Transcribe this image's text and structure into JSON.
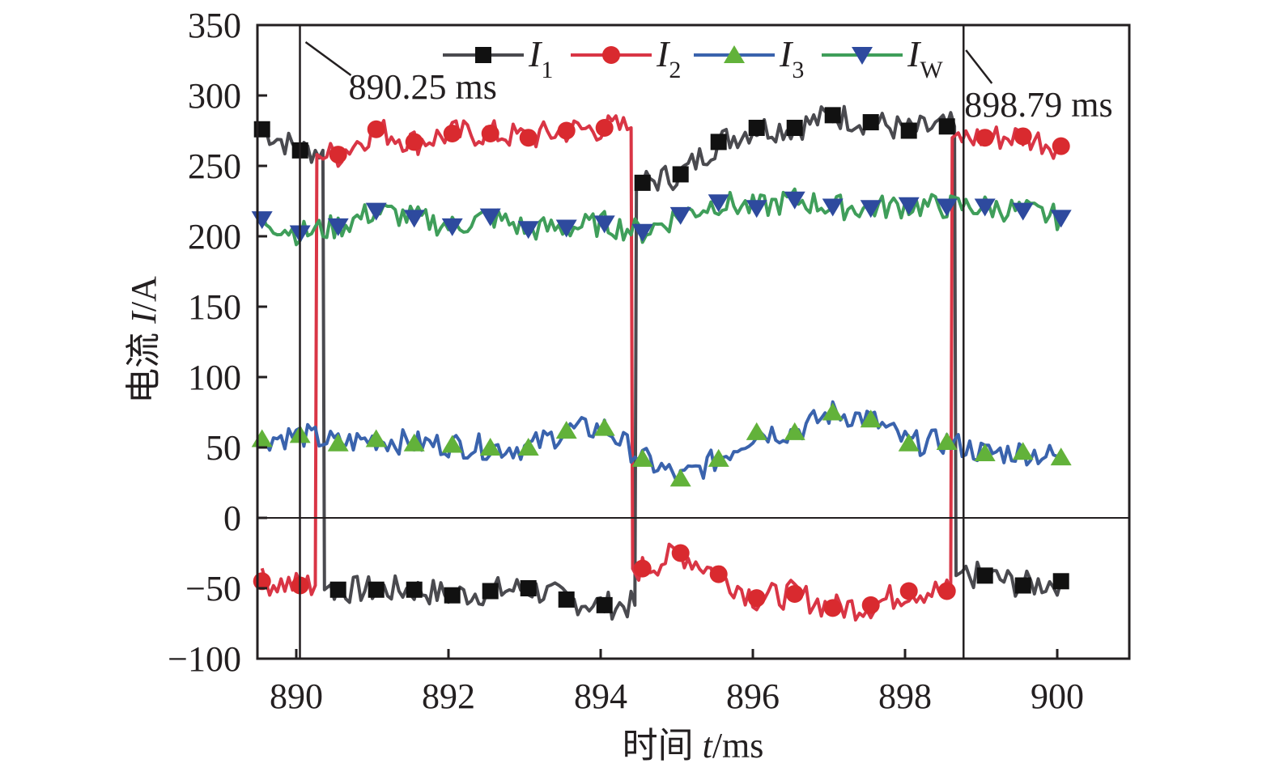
{
  "chart_data": {
    "type": "line",
    "title": "",
    "xlabel": "时间 t/ms",
    "ylabel": "电流 I/A",
    "xlabel_parts": {
      "prefix": "时间 ",
      "var": "t",
      "unit": "/ms"
    },
    "ylabel_parts": {
      "prefix": "电流 ",
      "var": "I",
      "unit": "/A"
    },
    "xlim": [
      889.5,
      901.0
    ],
    "ylim": [
      -100,
      350
    ],
    "xticks": [
      890,
      892,
      894,
      896,
      898,
      900
    ],
    "yticks": [
      -100,
      -50,
      0,
      50,
      100,
      150,
      200,
      250,
      300,
      350
    ],
    "ytick_labels": [
      "−100",
      "−50",
      "0",
      "50",
      "100",
      "150",
      "200",
      "250",
      "300",
      "350"
    ],
    "grid": false,
    "legend_placement": "top-center",
    "zero_line": true,
    "annotations": [
      {
        "x": 890.25,
        "label": "890.25 ms"
      },
      {
        "x": 898.79,
        "label": "898.79 ms"
      }
    ],
    "x": [
      889.55,
      890.05,
      890.55,
      891.05,
      891.55,
      892.05,
      892.55,
      893.05,
      893.55,
      894.05,
      894.55,
      895.05,
      895.55,
      896.05,
      896.55,
      897.05,
      897.55,
      898.05,
      898.55,
      899.05,
      899.55,
      900.05
    ],
    "series": [
      {
        "name": "I1",
        "label_main": "I",
        "label_sub": "1",
        "color": "#4a4a4f",
        "marker": "square",
        "marker_color": "#111111",
        "values": [
          276,
          261,
          -51,
          -51,
          -51,
          -55,
          -52,
          -50,
          -58,
          -62,
          238,
          244,
          267,
          277,
          277,
          286,
          281,
          275,
          278,
          -41,
          -48,
          -45
        ],
        "switch_points": [
          [
            890.35,
            261,
            -30
          ],
          [
            894.45,
            -57,
            230
          ],
          [
            898.65,
            270,
            -30
          ]
        ]
      },
      {
        "name": "I2",
        "label_main": "I",
        "label_sub": "2",
        "color": "#d93545",
        "marker": "circle",
        "marker_color": "#d92a2f",
        "values": [
          -45,
          -48,
          258,
          276,
          267,
          273,
          273,
          270,
          275,
          277,
          -36,
          -25,
          -40,
          -57,
          -54,
          -64,
          -62,
          -52,
          -52,
          270,
          271,
          264
        ],
        "switch_points": [
          [
            890.25,
            -48,
            250
          ],
          [
            894.4,
            275,
            -30
          ],
          [
            898.6,
            -50,
            245
          ]
        ]
      },
      {
        "name": "I3",
        "label_main": "I",
        "label_sub": "3",
        "color": "#3a63ad",
        "marker": "triangle-up",
        "marker_color": "#62b23a",
        "values": [
          56,
          59,
          53,
          56,
          53,
          52,
          50,
          50,
          62,
          64,
          42,
          28,
          42,
          61,
          61,
          75,
          70,
          53,
          54,
          46,
          47,
          43
        ]
      },
      {
        "name": "IW",
        "label_main": "I",
        "label_sub": "W",
        "color": "#3f9e5a",
        "marker": "triangle-down",
        "marker_color": "#2e4a9e",
        "values": [
          212,
          202,
          207,
          218,
          213,
          207,
          214,
          205,
          206,
          209,
          203,
          215,
          224,
          220,
          226,
          221,
          220,
          222,
          221,
          221,
          218,
          213
        ]
      }
    ]
  }
}
